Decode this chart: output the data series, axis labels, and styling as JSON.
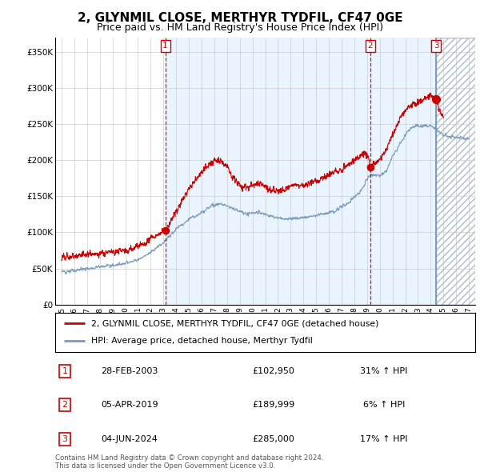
{
  "title": "2, GLYNMIL CLOSE, MERTHYR TYDFIL, CF47 0GE",
  "subtitle": "Price paid vs. HM Land Registry's House Price Index (HPI)",
  "title_fontsize": 11,
  "subtitle_fontsize": 9,
  "ylim": [
    0,
    370000
  ],
  "xlim": [
    1994.5,
    2027.5
  ],
  "yticks": [
    0,
    50000,
    100000,
    150000,
    200000,
    250000,
    300000,
    350000
  ],
  "ytick_labels": [
    "£0",
    "£50K",
    "£100K",
    "£150K",
    "£200K",
    "£250K",
    "£300K",
    "£350K"
  ],
  "xticks": [
    1995,
    1996,
    1997,
    1998,
    1999,
    2000,
    2001,
    2002,
    2003,
    2004,
    2005,
    2006,
    2007,
    2008,
    2009,
    2010,
    2011,
    2012,
    2013,
    2014,
    2015,
    2016,
    2017,
    2018,
    2019,
    2020,
    2021,
    2022,
    2023,
    2024,
    2025,
    2026,
    2027
  ],
  "red_color": "#cc0000",
  "blue_color": "#7799bb",
  "blue_fill_color": "#ddeeff",
  "hatch_color": "#aabbcc",
  "transaction1_year": 2003.15,
  "transaction1_price": 102950,
  "transaction2_year": 2019.25,
  "transaction2_price": 189999,
  "transaction3_year": 2024.42,
  "transaction3_price": 285000,
  "legend_property": "2, GLYNMIL CLOSE, MERTHYR TYDFIL, CF47 0GE (detached house)",
  "legend_hpi": "HPI: Average price, detached house, Merthyr Tydfil",
  "table_rows": [
    {
      "num": "1",
      "date": "28-FEB-2003",
      "price": "£102,950",
      "change": "31% ↑ HPI"
    },
    {
      "num": "2",
      "date": "05-APR-2019",
      "price": "£189,999",
      "change": "6% ↑ HPI"
    },
    {
      "num": "3",
      "date": "04-JUN-2024",
      "price": "£285,000",
      "change": "17% ↑ HPI"
    }
  ],
  "footer": "Contains HM Land Registry data © Crown copyright and database right 2024.\nThis data is licensed under the Open Government Licence v3.0.",
  "background_color": "#ffffff",
  "grid_color": "#cccccc"
}
